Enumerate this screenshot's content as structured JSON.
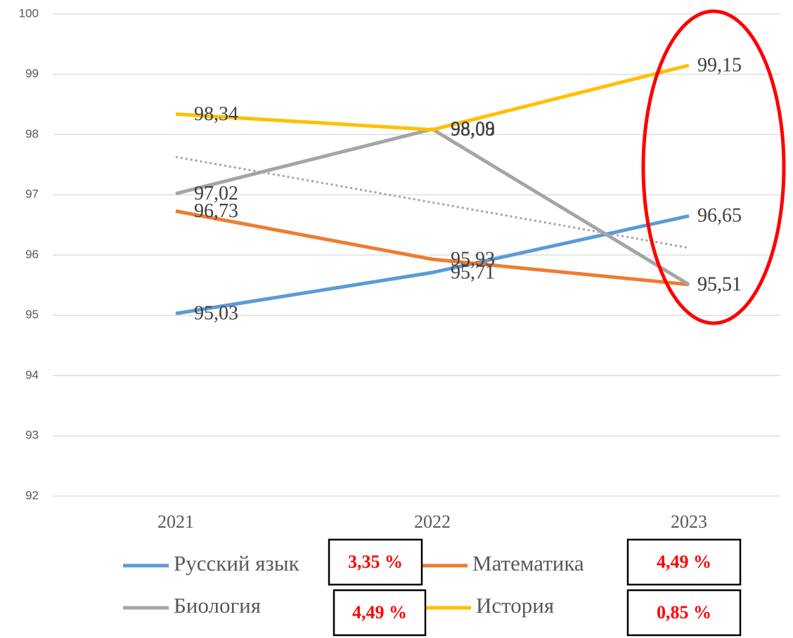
{
  "chart_data": {
    "type": "line",
    "categories": [
      "2021",
      "2022",
      "2023"
    ],
    "series": [
      {
        "name": "Русский язык",
        "color": "#5b9bd5",
        "values": [
          95.03,
          95.71,
          96.65
        ],
        "value_labels": [
          "95,03",
          "95,71",
          "96,65"
        ]
      },
      {
        "name": "Математика",
        "color": "#ed7d31",
        "values": [
          96.73,
          95.93,
          95.51
        ],
        "value_labels": [
          "96,73",
          "95,93",
          "95,51"
        ]
      },
      {
        "name": "Биология",
        "color": "#a5a5a5",
        "values": [
          97.02,
          98.09,
          95.51
        ],
        "value_labels": [
          "97,02",
          "98,09",
          "95,51"
        ],
        "trendline": "linear"
      },
      {
        "name": "История",
        "color": "#ffc000",
        "values": [
          98.34,
          98.08,
          99.15
        ],
        "value_labels": [
          "98,34",
          "98,08",
          "99,15"
        ]
      }
    ],
    "annotations": [
      "3,35 %",
      "4,49 %",
      "4,49 %",
      "0,85 %"
    ],
    "ylim": [
      92,
      100
    ],
    "yticks": [
      92,
      93,
      94,
      95,
      96,
      97,
      98,
      99,
      100
    ],
    "grid": true,
    "legend": "bottom"
  }
}
